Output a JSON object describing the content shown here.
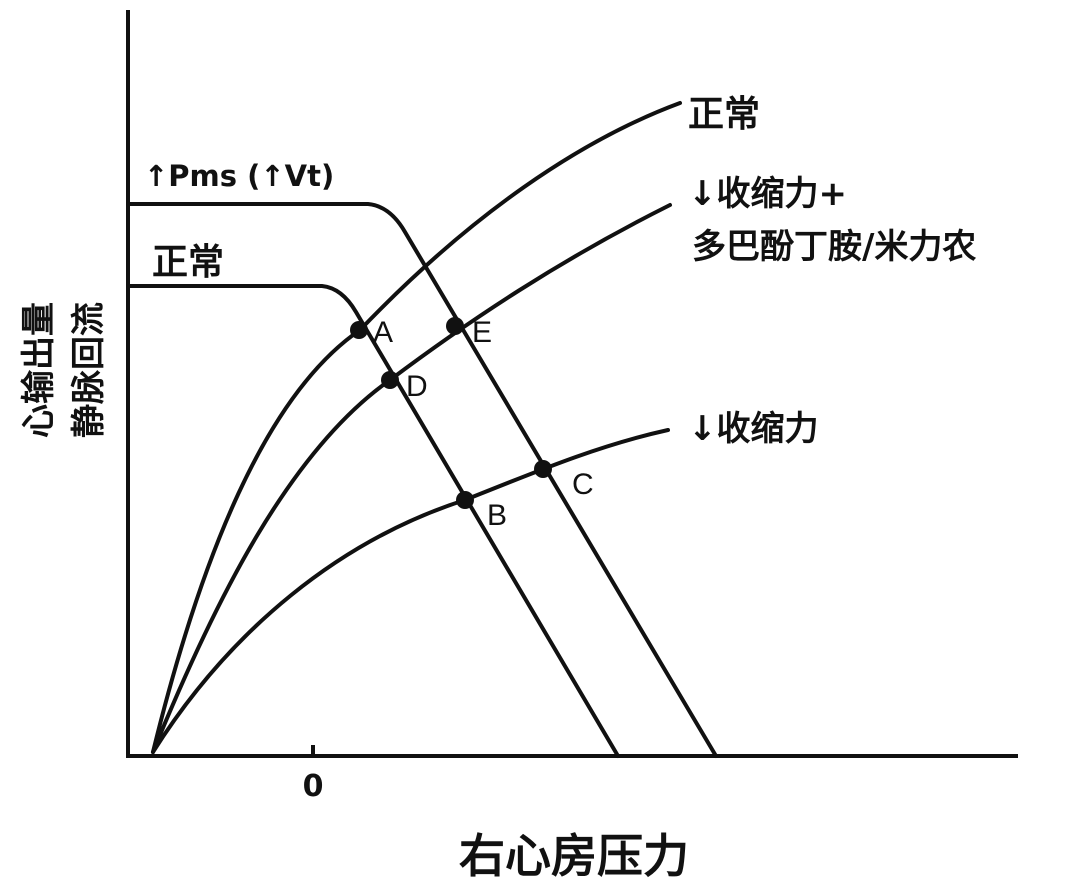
{
  "axes": {
    "x_label": "右心房压力",
    "y_label_line1": "心输出量",
    "y_label_line2": "静脉回流",
    "x_tick_zero": "0"
  },
  "cardiac_curves": {
    "normal": "正常",
    "reduced_contractility_with_drug_line1": "↓收缩力+",
    "reduced_contractility_with_drug_line2": "多巴酚丁胺/米力农",
    "reduced_contractility": "↓收缩力"
  },
  "venous_curves": {
    "increased_pms": "↑Pms (↑Vt)",
    "normal": "正常"
  },
  "points": {
    "A": "A",
    "B": "B",
    "C": "C",
    "D": "D",
    "E": "E"
  }
}
